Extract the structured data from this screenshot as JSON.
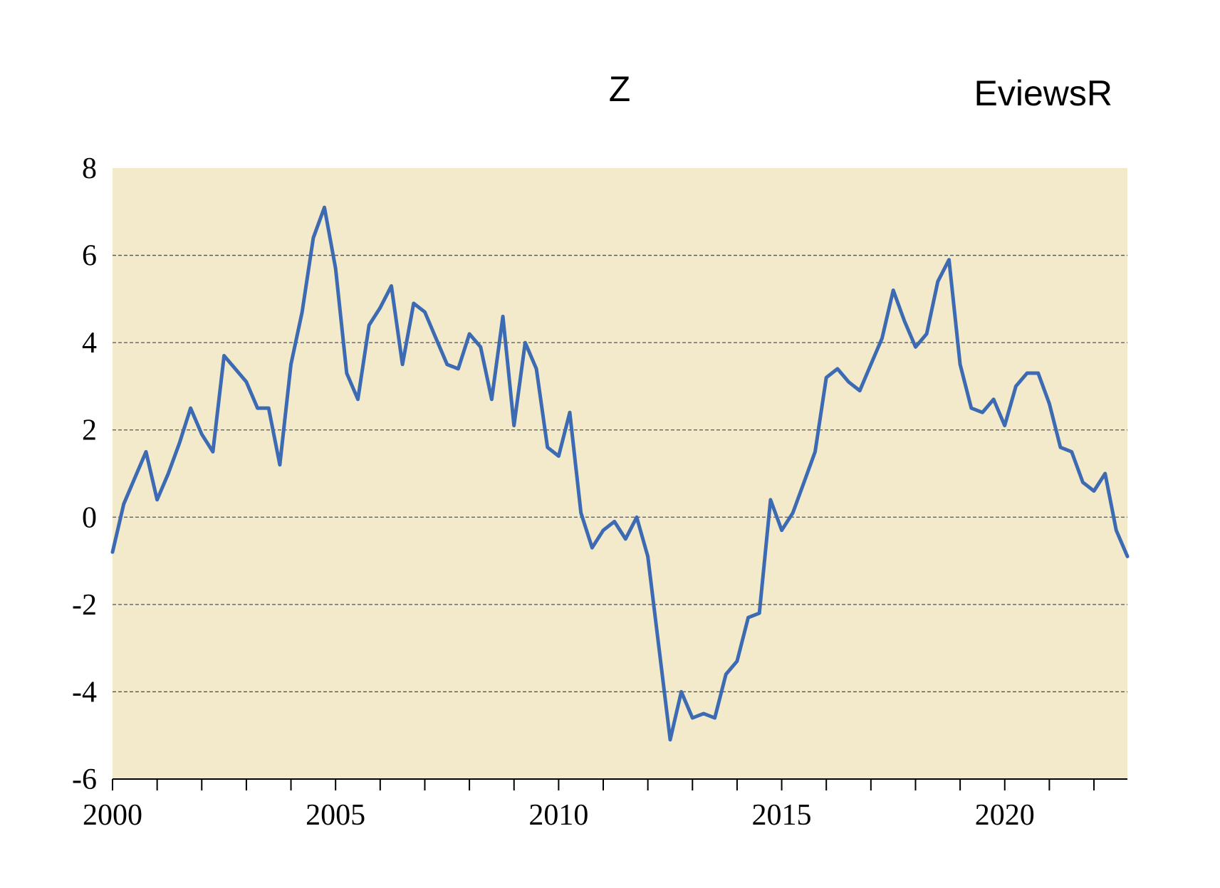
{
  "chart_data": {
    "type": "line",
    "title": "Z",
    "watermark": "EviewsR",
    "xlabel": "",
    "ylabel": "",
    "x_start": 2000.0,
    "x_step": 0.25,
    "xlim": [
      2000.0,
      2022.75
    ],
    "ylim": [
      -6,
      8
    ],
    "y_ticks": [
      "8",
      "6",
      "4",
      "2",
      "0",
      "-2",
      "-4",
      "-6"
    ],
    "x_ticks": [
      "2000",
      "2005",
      "2010",
      "2015",
      "2020"
    ],
    "grid": true,
    "legend": "none",
    "series": [
      {
        "values": [
          -0.8,
          0.3,
          0.9,
          1.5,
          0.4,
          1.0,
          1.7,
          2.5,
          1.9,
          1.5,
          3.7,
          3.4,
          3.1,
          2.5,
          2.5,
          1.2,
          3.5,
          4.7,
          6.4,
          7.1,
          5.7,
          3.3,
          2.7,
          4.4,
          4.8,
          5.3,
          3.5,
          4.9,
          4.7,
          4.1,
          3.5,
          3.4,
          4.2,
          3.9,
          2.7,
          4.6,
          2.1,
          4.0,
          3.4,
          1.6,
          1.4,
          2.4,
          0.1,
          -0.7,
          -0.3,
          -0.1,
          -0.5,
          0.0,
          -0.9,
          -3.0,
          -5.1,
          -4.0,
          -4.6,
          -4.5,
          -4.6,
          -3.6,
          -3.3,
          -2.3,
          -2.2,
          0.4,
          -0.3,
          0.1,
          0.8,
          1.5,
          3.2,
          3.4,
          3.1,
          2.9,
          3.5,
          4.1,
          5.2,
          4.5,
          3.9,
          4.2,
          5.4,
          5.9,
          3.5,
          2.5,
          2.4,
          2.7,
          2.1,
          3.0,
          3.3,
          3.3,
          2.6,
          1.6,
          1.5,
          0.8,
          0.6,
          1.0,
          -0.3,
          -0.9
        ]
      }
    ]
  },
  "colors": {
    "plot_background": "#f2eacb",
    "line": "#3d6bb3",
    "grid": "#555555"
  }
}
